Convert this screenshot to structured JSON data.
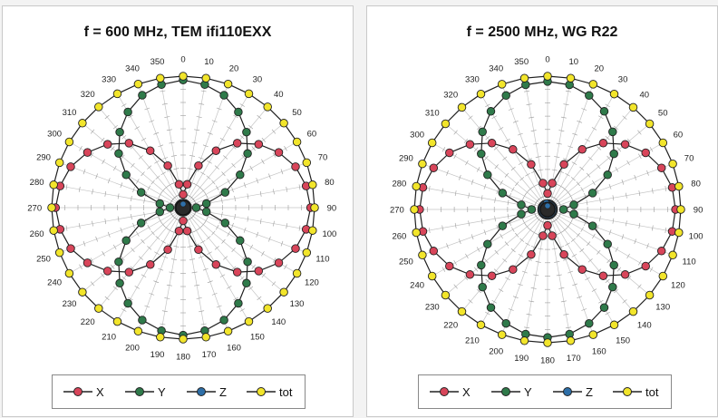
{
  "chart_data": [
    {
      "type": "polar-line",
      "title": "f = 600 MHz, TEM ifi110EXX",
      "angle_ticks": [
        "0",
        "10",
        "20",
        "30",
        "40",
        "50",
        "60",
        "70",
        "80",
        "90",
        "100",
        "110",
        "120",
        "130",
        "140",
        "150",
        "160",
        "170",
        "180",
        "190",
        "200",
        "210",
        "220",
        "230",
        "240",
        "250",
        "260",
        "270",
        "280",
        "290",
        "300",
        "310",
        "320",
        "330",
        "340",
        "350"
      ],
      "angles_deg": [
        0,
        10,
        20,
        30,
        40,
        50,
        60,
        70,
        80,
        90,
        100,
        110,
        120,
        130,
        140,
        150,
        160,
        170,
        180,
        190,
        200,
        210,
        220,
        230,
        240,
        250,
        260,
        270,
        280,
        290,
        300,
        310,
        320,
        330,
        340,
        350
      ],
      "r_range": [
        0,
        1
      ],
      "grid": true,
      "legend_position": "bottom",
      "series": [
        {
          "name": "X",
          "color": "#d8455a",
          "values": [
            0.1,
            0.18,
            0.34,
            0.5,
            0.64,
            0.75,
            0.84,
            0.91,
            0.95,
            0.97,
            0.95,
            0.91,
            0.84,
            0.75,
            0.64,
            0.5,
            0.34,
            0.18,
            0.1,
            0.18,
            0.34,
            0.5,
            0.64,
            0.75,
            0.84,
            0.91,
            0.95,
            0.97,
            0.95,
            0.91,
            0.84,
            0.75,
            0.64,
            0.5,
            0.34,
            0.18
          ]
        },
        {
          "name": "Y",
          "color": "#2f7a4a",
          "values": [
            0.97,
            0.95,
            0.91,
            0.84,
            0.75,
            0.64,
            0.5,
            0.34,
            0.18,
            0.1,
            0.18,
            0.34,
            0.5,
            0.64,
            0.75,
            0.84,
            0.91,
            0.95,
            0.97,
            0.95,
            0.91,
            0.84,
            0.75,
            0.64,
            0.5,
            0.34,
            0.18,
            0.1,
            0.18,
            0.34,
            0.5,
            0.64,
            0.75,
            0.84,
            0.91,
            0.95
          ]
        },
        {
          "name": "Z",
          "color": "#2e6fa8",
          "values": [
            0.04,
            0.04,
            0.04,
            0.04,
            0.04,
            0.04,
            0.04,
            0.04,
            0.04,
            0.04,
            0.04,
            0.04,
            0.04,
            0.04,
            0.04,
            0.04,
            0.04,
            0.04,
            0.04,
            0.04,
            0.04,
            0.04,
            0.04,
            0.04,
            0.04,
            0.04,
            0.04,
            0.04,
            0.04,
            0.04,
            0.04,
            0.04,
            0.04,
            0.04,
            0.04,
            0.04
          ]
        },
        {
          "name": "tot",
          "color": "#f2e52b",
          "values": [
            1.0,
            1.0,
            1.0,
            1.0,
            1.0,
            1.0,
            1.0,
            1.0,
            1.0,
            1.0,
            1.0,
            1.0,
            1.0,
            1.0,
            1.0,
            1.0,
            1.0,
            1.0,
            1.0,
            1.0,
            1.0,
            1.0,
            1.0,
            1.0,
            1.0,
            1.0,
            1.0,
            1.0,
            1.0,
            1.0,
            1.0,
            1.0,
            1.0,
            1.0,
            1.0,
            1.0
          ]
        }
      ]
    },
    {
      "type": "polar-line",
      "title": "f = 2500 MHz, WG R22",
      "angle_ticks": [
        "0",
        "10",
        "20",
        "30",
        "40",
        "50",
        "60",
        "70",
        "80",
        "90",
        "100",
        "110",
        "120",
        "130",
        "140",
        "150",
        "160",
        "170",
        "180",
        "190",
        "200",
        "210",
        "220",
        "230",
        "240",
        "250",
        "260",
        "270",
        "280",
        "290",
        "300",
        "310",
        "320",
        "330",
        "340",
        "350"
      ],
      "angles_deg": [
        0,
        10,
        20,
        30,
        40,
        50,
        60,
        70,
        80,
        90,
        100,
        110,
        120,
        130,
        140,
        150,
        160,
        170,
        180,
        190,
        200,
        210,
        220,
        230,
        240,
        250,
        260,
        270,
        280,
        290,
        300,
        310,
        320,
        330,
        340,
        350
      ],
      "r_range": [
        0,
        1
      ],
      "grid": true,
      "legend_position": "bottom",
      "series": [
        {
          "name": "X",
          "color": "#d8455a",
          "values": [
            0.12,
            0.2,
            0.36,
            0.52,
            0.65,
            0.76,
            0.85,
            0.91,
            0.95,
            0.96,
            0.95,
            0.91,
            0.85,
            0.76,
            0.65,
            0.52,
            0.36,
            0.2,
            0.12,
            0.2,
            0.36,
            0.52,
            0.65,
            0.76,
            0.85,
            0.91,
            0.95,
            0.96,
            0.95,
            0.91,
            0.85,
            0.76,
            0.65,
            0.52,
            0.36,
            0.2
          ]
        },
        {
          "name": "Y",
          "color": "#2f7a4a",
          "values": [
            0.96,
            0.95,
            0.91,
            0.85,
            0.76,
            0.65,
            0.52,
            0.36,
            0.2,
            0.12,
            0.2,
            0.36,
            0.52,
            0.65,
            0.76,
            0.85,
            0.91,
            0.95,
            0.96,
            0.95,
            0.91,
            0.85,
            0.76,
            0.65,
            0.52,
            0.36,
            0.2,
            0.12,
            0.2,
            0.36,
            0.52,
            0.65,
            0.76,
            0.85,
            0.91,
            0.95
          ]
        },
        {
          "name": "Z",
          "color": "#2e6fa8",
          "values": [
            0.05,
            0.05,
            0.05,
            0.05,
            0.05,
            0.05,
            0.05,
            0.05,
            0.05,
            0.05,
            0.05,
            0.05,
            0.05,
            0.05,
            0.05,
            0.05,
            0.05,
            0.05,
            0.05,
            0.05,
            0.05,
            0.05,
            0.05,
            0.05,
            0.05,
            0.05,
            0.05,
            0.05,
            0.05,
            0.05,
            0.05,
            0.05,
            0.05,
            0.05,
            0.05,
            0.05
          ]
        },
        {
          "name": "tot",
          "color": "#f2e52b",
          "values": [
            1.0,
            1.0,
            1.0,
            1.0,
            1.0,
            1.0,
            1.0,
            1.0,
            1.0,
            1.0,
            1.0,
            1.0,
            1.0,
            1.0,
            1.0,
            1.0,
            1.0,
            1.0,
            1.0,
            1.0,
            1.0,
            1.0,
            1.0,
            1.0,
            1.0,
            1.0,
            1.0,
            1.0,
            1.0,
            1.0,
            1.0,
            1.0,
            1.0,
            1.0,
            1.0,
            1.0
          ]
        }
      ]
    }
  ]
}
